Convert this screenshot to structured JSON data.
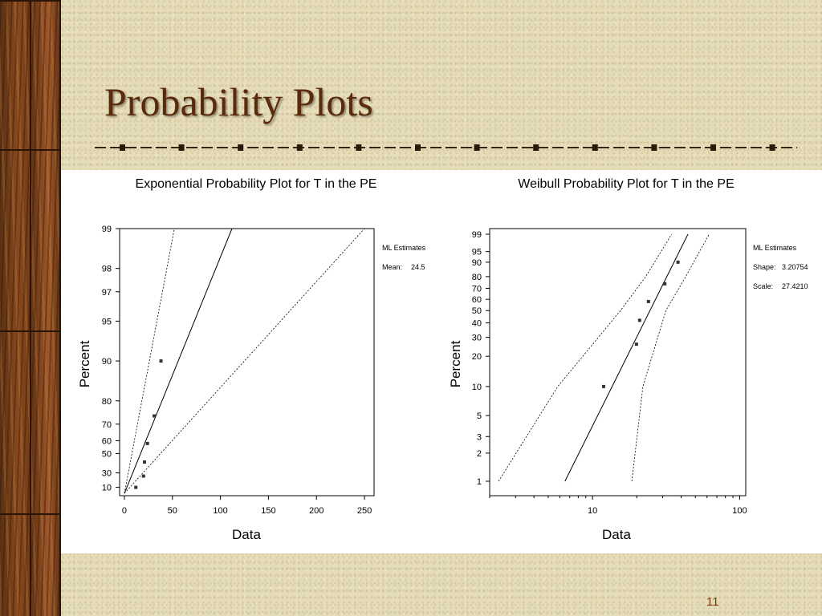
{
  "slide": {
    "title": "Probability Plots",
    "page_number": "11",
    "title_color": "#5a2a0c"
  },
  "chart_data": [
    {
      "type": "scatter",
      "title": "Exponential Probability Plot for T in the PE",
      "xlabel": "Data",
      "ylabel": "Percent",
      "xlim": [
        -5,
        260
      ],
      "x_ticks": [
        0,
        50,
        100,
        150,
        200,
        250
      ],
      "y_ticks": [
        10,
        30,
        50,
        60,
        70,
        80,
        90,
        95,
        97,
        98,
        99
      ],
      "y_scale": "exponential-probability",
      "points": [
        {
          "x": 11.9,
          "y": 10
        },
        {
          "x": 19.9,
          "y": 26
        },
        {
          "x": 20.9,
          "y": 42
        },
        {
          "x": 24.0,
          "y": 58
        },
        {
          "x": 31.0,
          "y": 74
        },
        {
          "x": 38.1,
          "y": 90
        }
      ],
      "fit_line": [
        [
          0,
          0
        ],
        [
          112,
          99
        ]
      ],
      "ci_upper": [
        [
          0,
          0
        ],
        [
          52,
          99
        ]
      ],
      "ci_lower": [
        [
          0,
          0
        ],
        [
          250,
          99
        ]
      ],
      "legend": {
        "heading": "ML Estimates",
        "rows": [
          {
            "label": "Mean:",
            "value": "24.5"
          }
        ],
        "placement": "right"
      }
    },
    {
      "type": "scatter",
      "title": "Weibull Probability Plot for T in the PE",
      "xlabel": "Data",
      "ylabel": "Percent",
      "x_scale": "log",
      "xlim": [
        2,
        110
      ],
      "x_ticks": [
        10,
        100
      ],
      "y_ticks": [
        1,
        2,
        3,
        5,
        10,
        20,
        30,
        40,
        50,
        60,
        70,
        80,
        90,
        95,
        99
      ],
      "y_scale": "weibull-probability",
      "points": [
        {
          "x": 11.9,
          "y": 10
        },
        {
          "x": 19.9,
          "y": 26
        },
        {
          "x": 20.9,
          "y": 42
        },
        {
          "x": 24.0,
          "y": 58
        },
        {
          "x": 31.0,
          "y": 74
        },
        {
          "x": 38.1,
          "y": 90
        }
      ],
      "fit_line": [
        [
          6.5,
          1
        ],
        [
          44.5,
          99
        ]
      ],
      "ci_upper": [
        [
          2.3,
          1
        ],
        [
          5.8,
          10
        ],
        [
          15.5,
          50
        ],
        [
          23,
          80
        ],
        [
          34.5,
          99
        ]
      ],
      "ci_lower": [
        [
          18.5,
          1
        ],
        [
          22,
          10
        ],
        [
          31.5,
          50
        ],
        [
          43,
          80
        ],
        [
          62,
          99
        ]
      ],
      "legend": {
        "heading": "ML Estimates",
        "rows": [
          {
            "label": "Shape:",
            "value": "3.20754"
          },
          {
            "label": "Scale:",
            "value": "27.4210"
          }
        ],
        "placement": "right"
      }
    }
  ]
}
